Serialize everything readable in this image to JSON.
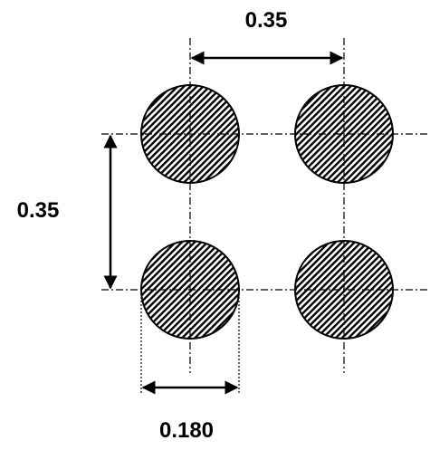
{
  "dimensions": {
    "pitch_horizontal": "0.35",
    "pitch_vertical": "0.35",
    "diameter": "0.180"
  },
  "colors": {
    "stroke": "#000000",
    "background": "#ffffff"
  }
}
